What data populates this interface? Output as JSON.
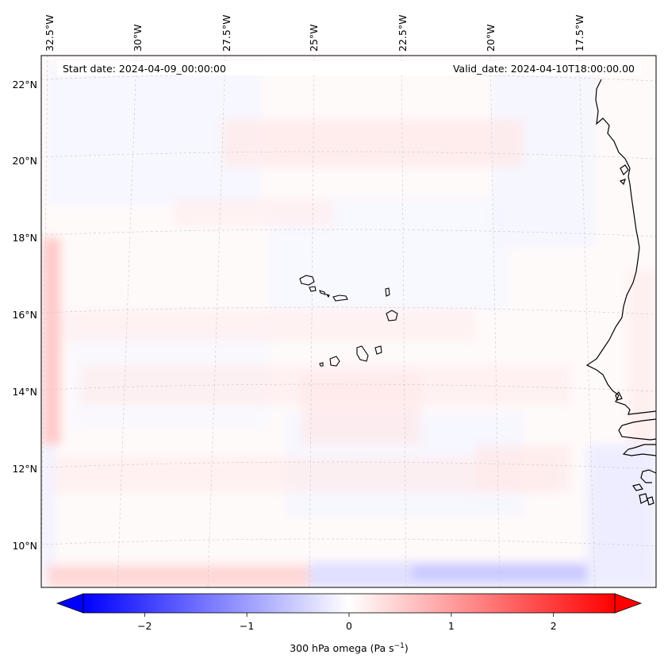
{
  "map": {
    "header": {
      "start_date": "Start date: 2024-04-09_00:00:00",
      "valid_date": "Valid_date: 2024-04-10T18:00:00.00"
    },
    "lon_labels": [
      "32.5°W",
      "30°W",
      "27.5°W",
      "25°W",
      "22.5°W",
      "20°W",
      "17.5°W"
    ],
    "lat_labels": [
      "22°N",
      "20°N",
      "18°N",
      "16°N",
      "14°N",
      "12°N",
      "10°N"
    ],
    "colorbar": {
      "label_main": "300 hPa omega (Pa s",
      "label_sup": "−1",
      "label_end": ")",
      "ticks": [
        "−2",
        "−1",
        "0",
        "1",
        "2"
      ],
      "tick_values": [
        -2,
        -1,
        0,
        1,
        2
      ],
      "range": [
        -2.6,
        2.6
      ],
      "colormap": "bwr",
      "color_low": "#0000ff",
      "color_mid": "#ffffff",
      "color_high": "#ff0000"
    }
  }
}
